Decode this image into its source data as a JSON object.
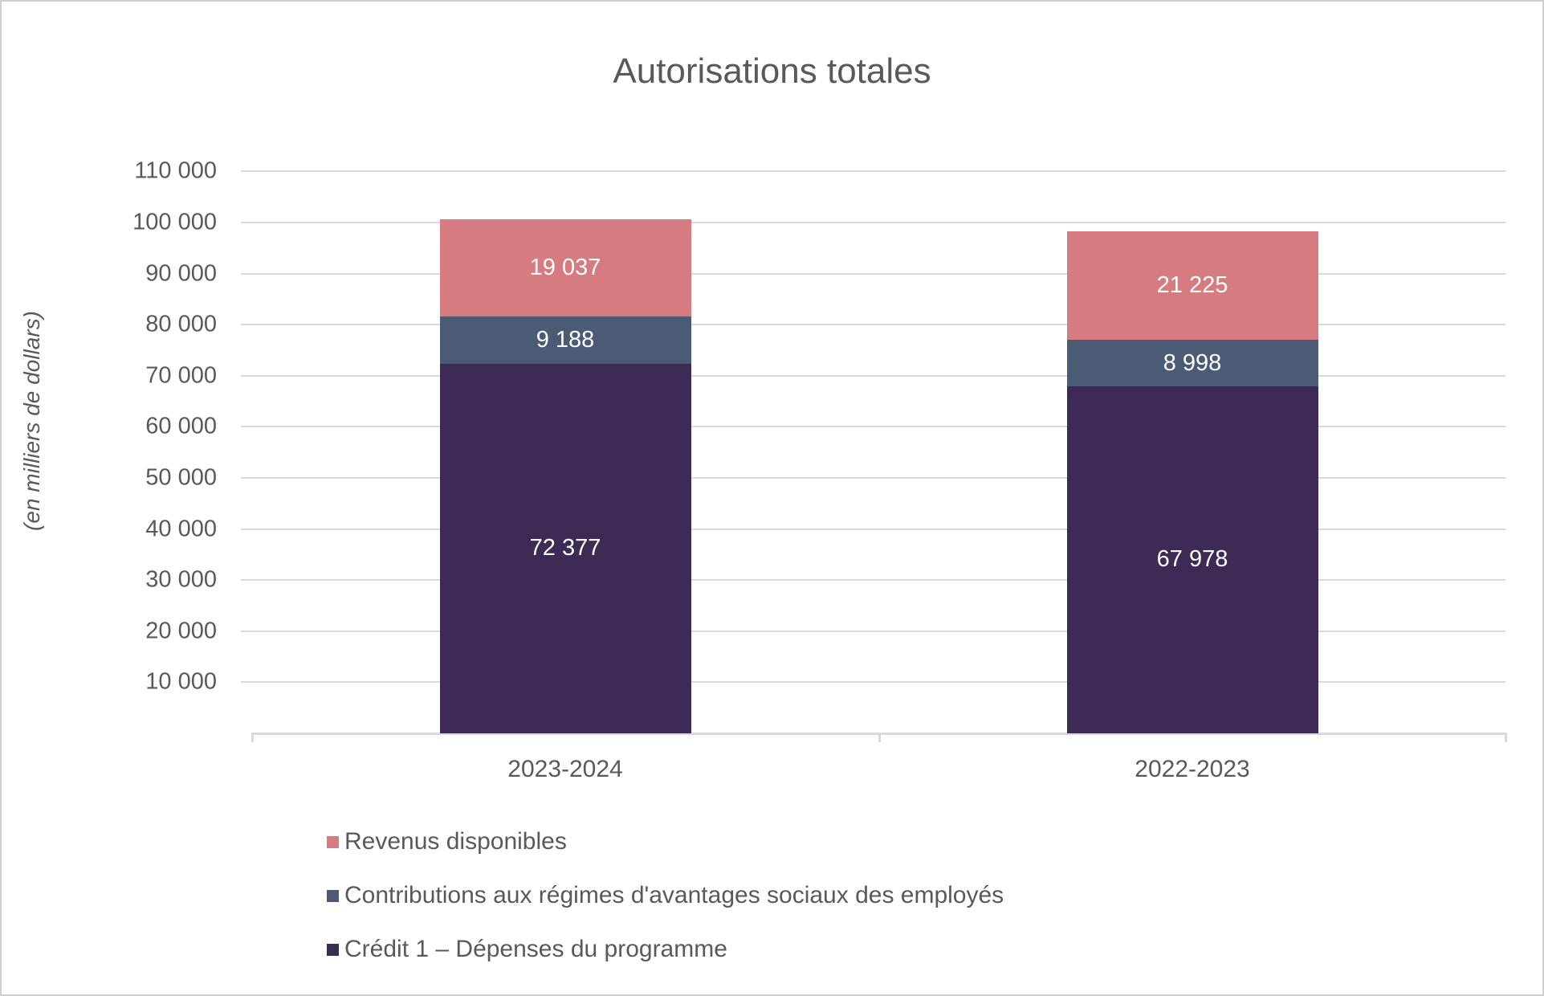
{
  "chart_data": {
    "type": "bar",
    "stacked": true,
    "title": "Autorisations totales",
    "ylabel": "(en milliers de dollars)",
    "xlabel": "",
    "categories": [
      "2023-2024",
      "2022-2023"
    ],
    "series": [
      {
        "name": "Crédit 1 – Dépenses du programme",
        "color": "#3D2B56",
        "values": [
          72377,
          67978
        ],
        "labels": [
          "72 377",
          "67 978"
        ]
      },
      {
        "name": "Contributions aux régimes d'avantages sociaux des employés",
        "color": "#4C5B75",
        "values": [
          9188,
          8998
        ],
        "labels": [
          "9 188",
          "8 998"
        ]
      },
      {
        "name": "Revenus disponibles",
        "color": "#D67C81",
        "values": [
          19037,
          21225
        ],
        "labels": [
          "19 037",
          "21 225"
        ]
      }
    ],
    "legend": [
      {
        "label": "Revenus disponibles",
        "color": "#D67C81"
      },
      {
        "label": "Contributions aux régimes d'avantages sociaux des employés",
        "color": "#4C5B75"
      },
      {
        "label": "Crédit 1 – Dépenses du programme",
        "color": "#3D2B56"
      }
    ],
    "legend_position": "bottom-left",
    "grid": true,
    "ylim": [
      0,
      110000
    ],
    "ytick_interval": 10000,
    "yticks": [
      {
        "value": 10000,
        "label": "10 000"
      },
      {
        "value": 20000,
        "label": "20 000"
      },
      {
        "value": 30000,
        "label": "30 000"
      },
      {
        "value": 40000,
        "label": "40 000"
      },
      {
        "value": 50000,
        "label": "50 000"
      },
      {
        "value": 60000,
        "label": "60 000"
      },
      {
        "value": 70000,
        "label": "70 000"
      },
      {
        "value": 80000,
        "label": "80 000"
      },
      {
        "value": 90000,
        "label": "90 000"
      },
      {
        "value": 100000,
        "label": "100 000"
      },
      {
        "value": 110000,
        "label": "110 000"
      }
    ],
    "colors": {
      "text": "#595959",
      "gridline": "#D9D9D9",
      "axis_line": "#D9D9D9",
      "bar_label": "#FFFFFF"
    }
  }
}
